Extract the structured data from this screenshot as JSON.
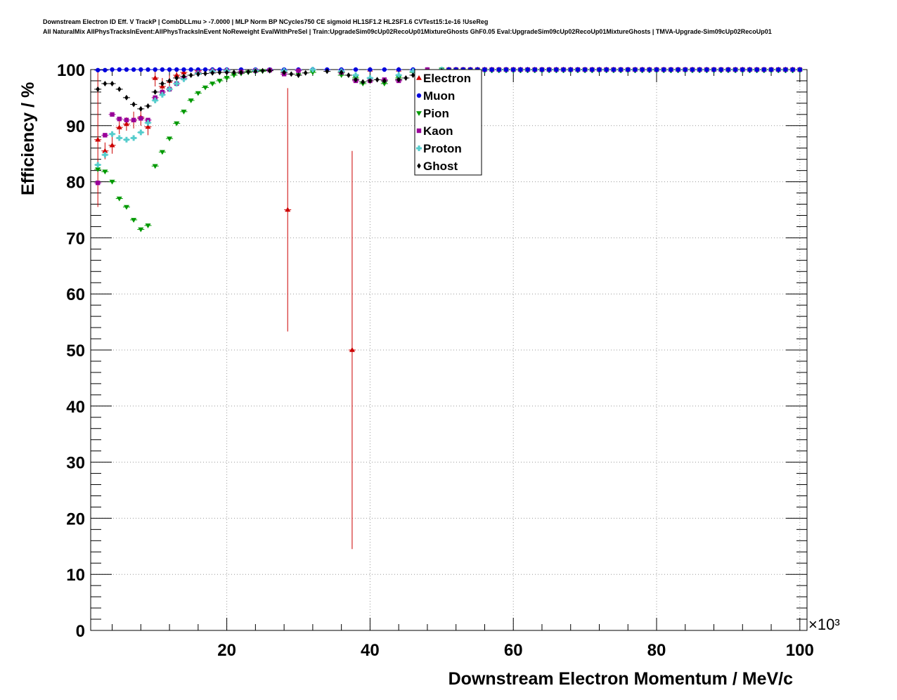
{
  "chart_data": {
    "type": "scatter",
    "title_lines": [
      "Downstream Electron ID Eff. V TrackP | CombDLLmu > -7.0000 | MLP Norm BP NCycles750 CE sigmoid HL1SF1.2 HL2SF1.6 CVTest15:1e-16 !UseReg",
      "All NaturalMix AllPhysTracksInEvent:AllPhysTracksInEvent NoReweight EvalWithPreSel | Train:UpgradeSim09cUp02RecoUp01MixtureGhosts GhF0.05 Eval:UpgradeSim09cUp02RecoUp01MixtureGhosts | TMVA-Upgrade-Sim09cUp02RecoUp01"
    ],
    "xlabel": "Downstream Electron Momentum / MeV/c",
    "ylabel": "Efficiency / %",
    "x_multiplier": "×10³",
    "xlim": [
      1,
      101
    ],
    "ylim": [
      0,
      100
    ],
    "x_ticks": [
      20,
      40,
      60,
      80,
      100
    ],
    "y_ticks": [
      0,
      10,
      20,
      30,
      40,
      50,
      60,
      70,
      80,
      90,
      100
    ],
    "grid": true,
    "legend_position": "top-center",
    "series": [
      {
        "name": "Electron",
        "color": "#cc0000",
        "marker": "triangle-up",
        "points": [
          {
            "x": 2,
            "y": 87.5,
            "err": 12
          },
          {
            "x": 3,
            "y": 85.5,
            "err": 1.5
          },
          {
            "x": 4,
            "y": 86.5,
            "err": 1.5
          },
          {
            "x": 5,
            "y": 89.7,
            "err": 1.2
          },
          {
            "x": 6,
            "y": 90.3,
            "err": 1.2
          },
          {
            "x": 7,
            "y": 91.0,
            "err": 1.5
          },
          {
            "x": 8,
            "y": 91.5,
            "err": 1.5
          },
          {
            "x": 9,
            "y": 89.8,
            "err": 1.5
          },
          {
            "x": 10,
            "y": 98.5,
            "err": 1.5
          },
          {
            "x": 11,
            "y": 97.0,
            "err": 1.5
          },
          {
            "x": 12,
            "y": 98.0,
            "err": 1.0
          },
          {
            "x": 13,
            "y": 99.0,
            "err": 0.8
          },
          {
            "x": 14,
            "y": 99.5,
            "err": 0.5
          },
          {
            "x": 16,
            "y": 99.8,
            "err": 0.3
          },
          {
            "x": 18,
            "y": 99.9,
            "err": 0.2
          },
          {
            "x": 28.5,
            "y": 75.0,
            "err": 21.7
          },
          {
            "x": 37.5,
            "y": 50.0,
            "err": 35.5
          },
          {
            "x": 40,
            "y": 100,
            "err": 0
          },
          {
            "x": 44,
            "y": 100,
            "err": 0
          }
        ]
      },
      {
        "name": "Muon",
        "color": "#0000dd",
        "marker": "circle",
        "points": [
          {
            "x": 2,
            "y": 99.9
          },
          {
            "x": 3,
            "y": 99.9
          },
          {
            "x": 4,
            "y": 100
          },
          {
            "x": 5,
            "y": 100
          },
          {
            "x": 6,
            "y": 100
          },
          {
            "x": 7,
            "y": 100
          },
          {
            "x": 8,
            "y": 100
          },
          {
            "x": 9,
            "y": 100
          },
          {
            "x": 10,
            "y": 100
          },
          {
            "x": 11,
            "y": 100
          },
          {
            "x": 12,
            "y": 100
          },
          {
            "x": 13,
            "y": 100
          },
          {
            "x": 14,
            "y": 100
          },
          {
            "x": 15,
            "y": 100
          },
          {
            "x": 16,
            "y": 100
          },
          {
            "x": 17,
            "y": 100
          },
          {
            "x": 18,
            "y": 100
          },
          {
            "x": 19,
            "y": 100
          },
          {
            "x": 20,
            "y": 100
          },
          {
            "x": 22,
            "y": 100
          },
          {
            "x": 24,
            "y": 100
          },
          {
            "x": 26,
            "y": 100
          },
          {
            "x": 28,
            "y": 100
          },
          {
            "x": 30,
            "y": 100
          },
          {
            "x": 32,
            "y": 100
          },
          {
            "x": 34,
            "y": 100
          },
          {
            "x": 36,
            "y": 100
          },
          {
            "x": 38,
            "y": 100
          },
          {
            "x": 40,
            "y": 100
          },
          {
            "x": 42,
            "y": 100
          },
          {
            "x": 44,
            "y": 100
          },
          {
            "x": 46,
            "y": 100
          },
          {
            "x": 48,
            "y": 100
          },
          {
            "x": 50,
            "y": 100
          }
        ]
      },
      {
        "name": "Pion",
        "color": "#009900",
        "marker": "triangle-down",
        "points": [
          {
            "x": 2,
            "y": 82.2
          },
          {
            "x": 3,
            "y": 81.8
          },
          {
            "x": 4,
            "y": 80.0
          },
          {
            "x": 5,
            "y": 77.0
          },
          {
            "x": 6,
            "y": 75.5
          },
          {
            "x": 7,
            "y": 73.2
          },
          {
            "x": 8,
            "y": 71.5
          },
          {
            "x": 9,
            "y": 72.2
          },
          {
            "x": 10,
            "y": 82.8
          },
          {
            "x": 11,
            "y": 85.3
          },
          {
            "x": 12,
            "y": 87.7
          },
          {
            "x": 13,
            "y": 90.4
          },
          {
            "x": 14,
            "y": 92.5
          },
          {
            "x": 15,
            "y": 94.5
          },
          {
            "x": 16,
            "y": 95.8
          },
          {
            "x": 17,
            "y": 96.8
          },
          {
            "x": 18,
            "y": 97.5
          },
          {
            "x": 19,
            "y": 98.0
          },
          {
            "x": 20,
            "y": 98.5
          },
          {
            "x": 21,
            "y": 99.0
          },
          {
            "x": 22,
            "y": 99.3
          },
          {
            "x": 23,
            "y": 99.5
          },
          {
            "x": 24,
            "y": 99.6
          },
          {
            "x": 25,
            "y": 99.7
          },
          {
            "x": 26,
            "y": 99.8
          },
          {
            "x": 28,
            "y": 99.5
          },
          {
            "x": 30,
            "y": 99.0
          },
          {
            "x": 32,
            "y": 99.5
          },
          {
            "x": 36,
            "y": 99.0
          },
          {
            "x": 38,
            "y": 98.5
          },
          {
            "x": 39,
            "y": 97.5
          },
          {
            "x": 40,
            "y": 98.0
          },
          {
            "x": 42,
            "y": 97.5
          },
          {
            "x": 44,
            "y": 98.5
          },
          {
            "x": 46,
            "y": 99.5
          },
          {
            "x": 50,
            "y": 100
          }
        ]
      },
      {
        "name": "Kaon",
        "color": "#990099",
        "marker": "square",
        "points": [
          {
            "x": 2,
            "y": 79.8
          },
          {
            "x": 3,
            "y": 88.3
          },
          {
            "x": 4,
            "y": 92.0
          },
          {
            "x": 5,
            "y": 91.2
          },
          {
            "x": 6,
            "y": 91.0
          },
          {
            "x": 7,
            "y": 91.0
          },
          {
            "x": 8,
            "y": 91.3
          },
          {
            "x": 9,
            "y": 91.0
          },
          {
            "x": 10,
            "y": 95.0
          },
          {
            "x": 11,
            "y": 96.0
          },
          {
            "x": 12,
            "y": 96.5
          },
          {
            "x": 13,
            "y": 97.5
          },
          {
            "x": 14,
            "y": 98.5
          },
          {
            "x": 16,
            "y": 99.5
          },
          {
            "x": 18,
            "y": 99.8
          },
          {
            "x": 20,
            "y": 99.8
          },
          {
            "x": 22,
            "y": 99.6
          },
          {
            "x": 24,
            "y": 99.8
          },
          {
            "x": 26,
            "y": 99.9
          },
          {
            "x": 28,
            "y": 99.2
          },
          {
            "x": 30,
            "y": 99.8
          },
          {
            "x": 36,
            "y": 99.5
          },
          {
            "x": 38,
            "y": 98.0
          },
          {
            "x": 40,
            "y": 98.0
          },
          {
            "x": 42,
            "y": 98.2
          },
          {
            "x": 44,
            "y": 98.0
          },
          {
            "x": 48,
            "y": 100
          }
        ]
      },
      {
        "name": "Proton",
        "color": "#55cccc",
        "marker": "cross",
        "points": [
          {
            "x": 2,
            "y": 83.0
          },
          {
            "x": 3,
            "y": 84.8
          },
          {
            "x": 4,
            "y": 88.5
          },
          {
            "x": 5,
            "y": 87.8
          },
          {
            "x": 6,
            "y": 87.5
          },
          {
            "x": 7,
            "y": 87.8
          },
          {
            "x": 8,
            "y": 88.8
          },
          {
            "x": 9,
            "y": 90.5
          },
          {
            "x": 10,
            "y": 94.5
          },
          {
            "x": 11,
            "y": 95.5
          },
          {
            "x": 12,
            "y": 96.5
          },
          {
            "x": 13,
            "y": 97.5
          },
          {
            "x": 14,
            "y": 98.3
          },
          {
            "x": 16,
            "y": 99.3
          },
          {
            "x": 18,
            "y": 99.7
          },
          {
            "x": 20,
            "y": 99.8
          },
          {
            "x": 24,
            "y": 99.8
          },
          {
            "x": 28,
            "y": 99.8
          },
          {
            "x": 32,
            "y": 100
          },
          {
            "x": 36,
            "y": 99.7
          },
          {
            "x": 38,
            "y": 99.0
          },
          {
            "x": 40,
            "y": 98.5
          },
          {
            "x": 44,
            "y": 99.0
          },
          {
            "x": 46,
            "y": 99.7
          },
          {
            "x": 50,
            "y": 100
          }
        ]
      },
      {
        "name": "Ghost",
        "color": "#000000",
        "marker": "diamond",
        "points": [
          {
            "x": 2,
            "y": 96.5
          },
          {
            "x": 3,
            "y": 97.5
          },
          {
            "x": 4,
            "y": 97.5
          },
          {
            "x": 5,
            "y": 96.5
          },
          {
            "x": 6,
            "y": 95.0
          },
          {
            "x": 7,
            "y": 93.8
          },
          {
            "x": 8,
            "y": 93.0
          },
          {
            "x": 9,
            "y": 93.5
          },
          {
            "x": 10,
            "y": 96.0
          },
          {
            "x": 11,
            "y": 97.5
          },
          {
            "x": 12,
            "y": 98.0
          },
          {
            "x": 13,
            "y": 98.5
          },
          {
            "x": 14,
            "y": 98.8
          },
          {
            "x": 15,
            "y": 99.0
          },
          {
            "x": 16,
            "y": 99.2
          },
          {
            "x": 17,
            "y": 99.3
          },
          {
            "x": 18,
            "y": 99.4
          },
          {
            "x": 19,
            "y": 99.5
          },
          {
            "x": 20,
            "y": 99.5
          },
          {
            "x": 21,
            "y": 99.5
          },
          {
            "x": 22,
            "y": 99.5
          },
          {
            "x": 23,
            "y": 99.6
          },
          {
            "x": 24,
            "y": 99.7
          },
          {
            "x": 25,
            "y": 99.8
          },
          {
            "x": 26,
            "y": 99.8
          },
          {
            "x": 28,
            "y": 99.5
          },
          {
            "x": 29,
            "y": 99.2
          },
          {
            "x": 30,
            "y": 99.0
          },
          {
            "x": 31,
            "y": 99.4
          },
          {
            "x": 34,
            "y": 99.7
          },
          {
            "x": 36,
            "y": 99.5
          },
          {
            "x": 37,
            "y": 99.0
          },
          {
            "x": 38,
            "y": 98.2
          },
          {
            "x": 39,
            "y": 97.8
          },
          {
            "x": 40,
            "y": 98.0
          },
          {
            "x": 41,
            "y": 98.2
          },
          {
            "x": 42,
            "y": 98.0
          },
          {
            "x": 44,
            "y": 98.2
          },
          {
            "x": 45,
            "y": 98.5
          },
          {
            "x": 46,
            "y": 99.0
          },
          {
            "x": 48,
            "y": 99.5
          },
          {
            "x": 50,
            "y": 99.8
          }
        ]
      }
    ],
    "flat_region": {
      "x_start": 51,
      "x_end": 100,
      "step": 1,
      "y": 100
    }
  }
}
